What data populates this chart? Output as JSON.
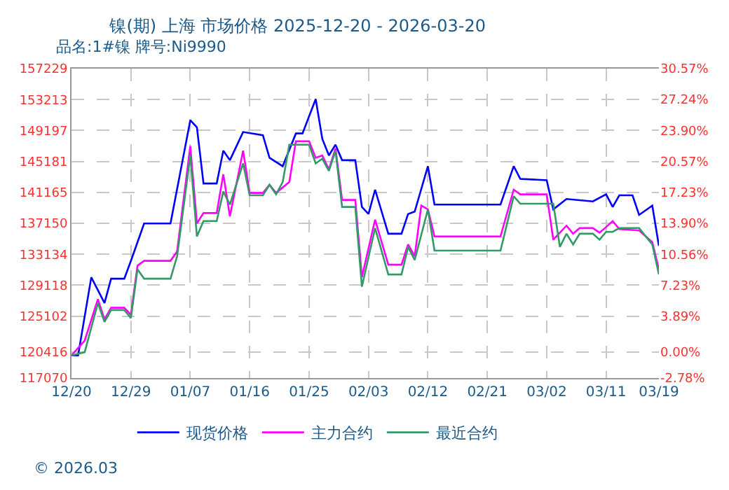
{
  "chart_data": {
    "type": "line",
    "title": "镍(期) 上海 市场价格 2025-12-20 - 2026-03-20",
    "subtitle": "品名:1#镍 牌号:Ni9990",
    "annotations": [
      "© 2026.03"
    ],
    "xlim": [
      "2025-12-20",
      "2026-03-19"
    ],
    "xticks": [
      {
        "value": "2025-12-20",
        "label": "12/20"
      },
      {
        "value": "2025-12-29",
        "label": "12/29"
      },
      {
        "value": "2026-01-07",
        "label": "01/07"
      },
      {
        "value": "2026-01-16",
        "label": "01/16"
      },
      {
        "value": "2026-01-25",
        "label": "01/25"
      },
      {
        "value": "2026-02-03",
        "label": "02/03"
      },
      {
        "value": "2026-02-12",
        "label": "02/12"
      },
      {
        "value": "2026-02-21",
        "label": "02/21"
      },
      {
        "value": "2026-03-02",
        "label": "03/02"
      },
      {
        "value": "2026-03-11",
        "label": "03/11"
      },
      {
        "value": "2026-03-19",
        "label": "03/19"
      }
    ],
    "ylim": [
      117070,
      157229
    ],
    "yticks": [
      117070,
      120416,
      125102,
      129118,
      133134,
      137150,
      141165,
      145181,
      149197,
      153213,
      157229
    ],
    "y2lim": [
      -2.78,
      30.57
    ],
    "y2ticks": [
      {
        "value": -2.78,
        "label": "-2.78%"
      },
      {
        "value": 0,
        "label": "0.00%"
      },
      {
        "value": 3.89,
        "label": "3.89%"
      },
      {
        "value": 7.23,
        "label": "7.23%"
      },
      {
        "value": 10.56,
        "label": "10.56%"
      },
      {
        "value": 13.9,
        "label": "13.90%"
      },
      {
        "value": 17.23,
        "label": "17.23%"
      },
      {
        "value": 20.57,
        "label": "20.57%"
      },
      {
        "value": 23.9,
        "label": "23.90%"
      },
      {
        "value": 27.24,
        "label": "27.24%"
      },
      {
        "value": 30.57,
        "label": "30.57%"
      }
    ],
    "grid": true,
    "legend": "bottom",
    "line_style": "solid",
    "series": [
      {
        "name": "现货价格",
        "color": "#0000ff",
        "x": [
          "2025-12-20",
          "2025-12-21",
          "2025-12-23",
          "2025-12-25",
          "2025-12-26",
          "2025-12-28",
          "2025-12-29",
          "2025-12-31",
          "2026-01-04",
          "2026-01-07",
          "2026-01-08",
          "2026-01-09",
          "2026-01-11",
          "2026-01-12",
          "2026-01-13",
          "2026-01-15",
          "2026-01-18",
          "2026-01-19",
          "2026-01-21",
          "2026-01-23",
          "2026-01-24",
          "2026-01-26",
          "2026-01-27",
          "2026-01-28",
          "2026-01-29",
          "2026-01-30",
          "2026-02-01",
          "2026-02-02",
          "2026-02-03",
          "2026-02-04",
          "2026-02-06",
          "2026-02-08",
          "2026-02-09",
          "2026-02-10",
          "2026-02-12",
          "2026-02-13",
          "2026-02-23",
          "2026-02-25",
          "2026-02-26",
          "2026-03-02",
          "2026-03-03",
          "2026-03-05",
          "2026-03-09",
          "2026-03-11",
          "2026-03-12",
          "2026-03-13",
          "2026-03-15",
          "2026-03-16",
          "2026-03-18",
          "2026-03-19"
        ],
        "values": [
          120000,
          120000,
          130140,
          126800,
          129960,
          129960,
          132260,
          137130,
          137130,
          150530,
          149620,
          142320,
          142320,
          146570,
          145340,
          149000,
          148580,
          145650,
          144560,
          148810,
          148810,
          153270,
          148100,
          145960,
          147350,
          145340,
          145340,
          139270,
          138360,
          141510,
          135800,
          135800,
          138360,
          138670,
          144560,
          139580,
          139580,
          144560,
          142920,
          142740,
          138960,
          140310,
          139990,
          140910,
          139270,
          140780,
          140780,
          138240,
          139450,
          134210
        ]
      },
      {
        "name": "主力合约",
        "color": "#ff00ff",
        "x": [
          "2025-12-20",
          "2025-12-22",
          "2025-12-24",
          "2025-12-25",
          "2025-12-26",
          "2025-12-28",
          "2025-12-29",
          "2025-12-30",
          "2025-12-31",
          "2026-01-04",
          "2026-01-05",
          "2026-01-07",
          "2026-01-08",
          "2026-01-09",
          "2026-01-11",
          "2026-01-12",
          "2026-01-13",
          "2026-01-15",
          "2026-01-16",
          "2026-01-18",
          "2026-01-19",
          "2026-01-20",
          "2026-01-22",
          "2026-01-23",
          "2026-01-25",
          "2026-01-26",
          "2026-01-27",
          "2026-01-28",
          "2026-01-29",
          "2026-01-30",
          "2026-02-01",
          "2026-02-02",
          "2026-02-04",
          "2026-02-06",
          "2026-02-08",
          "2026-02-09",
          "2026-02-10",
          "2026-02-11",
          "2026-02-12",
          "2026-02-13",
          "2026-02-23",
          "2026-02-25",
          "2026-02-26",
          "2026-03-02",
          "2026-03-03",
          "2026-03-05",
          "2026-03-06",
          "2026-03-07",
          "2026-03-09",
          "2026-03-10",
          "2026-03-11",
          "2026-03-12",
          "2026-03-13",
          "2026-03-16",
          "2026-03-18",
          "2026-03-19"
        ],
        "values": [
          120000,
          121930,
          127300,
          124670,
          126190,
          126190,
          125270,
          131660,
          132280,
          132280,
          133490,
          147170,
          137130,
          138480,
          138480,
          143520,
          138050,
          146570,
          141090,
          141090,
          142150,
          141090,
          142500,
          147800,
          147800,
          145650,
          145960,
          144140,
          146870,
          140180,
          140180,
          130140,
          137620,
          131780,
          131780,
          134400,
          132880,
          139450,
          138960,
          135440,
          135440,
          141510,
          140910,
          140910,
          135020,
          136840,
          135800,
          136530,
          136530,
          135930,
          136660,
          137440,
          136400,
          136220,
          134700,
          131180
        ]
      },
      {
        "name": "最近合约",
        "color": "#339966",
        "x": [
          "2025-12-20",
          "2025-12-22",
          "2025-12-24",
          "2025-12-25",
          "2025-12-26",
          "2025-12-28",
          "2025-12-29",
          "2025-12-30",
          "2025-12-31",
          "2026-01-04",
          "2026-01-05",
          "2026-01-07",
          "2026-01-08",
          "2026-01-09",
          "2026-01-11",
          "2026-01-12",
          "2026-01-13",
          "2026-01-15",
          "2026-01-16",
          "2026-01-18",
          "2026-01-19",
          "2026-01-20",
          "2026-01-21",
          "2026-01-22",
          "2026-01-25",
          "2026-01-26",
          "2026-01-27",
          "2026-01-28",
          "2026-01-29",
          "2026-01-30",
          "2026-02-01",
          "2026-02-02",
          "2026-02-04",
          "2026-02-06",
          "2026-02-08",
          "2026-02-09",
          "2026-02-10",
          "2026-02-12",
          "2026-02-13",
          "2026-02-23",
          "2026-02-25",
          "2026-02-26",
          "2026-03-03",
          "2026-03-04",
          "2026-03-05",
          "2026-03-06",
          "2026-03-07",
          "2026-03-09",
          "2026-03-10",
          "2026-03-11",
          "2026-03-12",
          "2026-03-13",
          "2026-03-16",
          "2026-03-18",
          "2026-03-19"
        ],
        "values": [
          120000,
          120420,
          126800,
          124360,
          125890,
          125890,
          124850,
          131180,
          129960,
          129960,
          132880,
          145960,
          135440,
          137440,
          137440,
          141270,
          139580,
          144920,
          140780,
          140780,
          142150,
          140910,
          142500,
          147350,
          147350,
          144920,
          145530,
          143960,
          146570,
          139270,
          139270,
          128920,
          136530,
          130510,
          130510,
          134090,
          132380,
          138960,
          133610,
          133610,
          140660,
          139690,
          139690,
          134090,
          135800,
          134400,
          135800,
          135800,
          135020,
          136040,
          136040,
          136530,
          136530,
          134400,
          130510
        ]
      }
    ]
  }
}
